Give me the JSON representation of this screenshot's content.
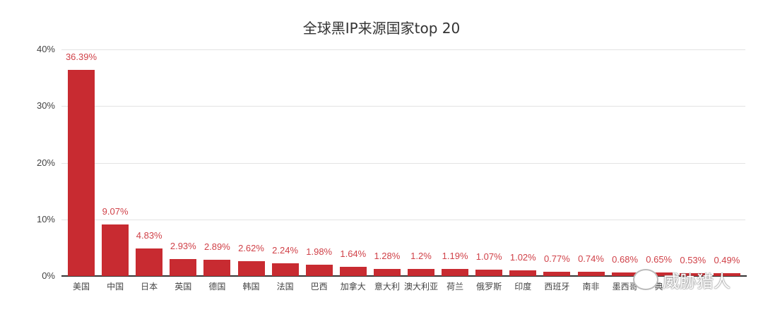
{
  "chart_data": {
    "type": "bar",
    "title": "全球黑IP来源国家top 20",
    "xlabel": "",
    "ylabel": "",
    "ylim": [
      0,
      40
    ],
    "yticks": [
      "0%",
      "10%",
      "20%",
      "30%",
      "40%"
    ],
    "grid": true,
    "legend": null,
    "bar_color": "#c82b31",
    "label_color": "#d04148",
    "categories": [
      "美国",
      "中国",
      "日本",
      "英国",
      "德国",
      "韩国",
      "法国",
      "巴西",
      "加拿大",
      "意大利",
      "澳大利亚",
      "荷兰",
      "俄罗斯",
      "印度",
      "西班牙",
      "南非",
      "墨西哥",
      "瑞典",
      "(obscured)",
      "(obscured)"
    ],
    "values": [
      36.39,
      9.07,
      4.83,
      2.93,
      2.89,
      2.62,
      2.24,
      1.98,
      1.64,
      1.28,
      1.2,
      1.19,
      1.07,
      1.02,
      0.77,
      0.74,
      0.68,
      0.65,
      0.53,
      0.49
    ],
    "value_labels": [
      "36.39%",
      "9.07%",
      "4.83%",
      "2.93%",
      "2.89%",
      "2.62%",
      "2.24%",
      "1.98%",
      "1.64%",
      "1.28%",
      "1.2%",
      "1.19%",
      "1.07%",
      "1.02%",
      "0.77%",
      "0.74%",
      "0.68%",
      "0.65%",
      "0.53%",
      "0.49%"
    ],
    "x_display_labels": [
      "美国",
      "中国",
      "日本",
      "英国",
      "德国",
      "韩国",
      "法国",
      "巴西",
      "加拿大",
      "意大利",
      "澳大利亚",
      "荷兰",
      "俄罗斯",
      "印度",
      "西班牙",
      "南非",
      "墨西哥",
      "典",
      "",
      ""
    ]
  },
  "watermark": {
    "text": "威胁猎人"
  }
}
